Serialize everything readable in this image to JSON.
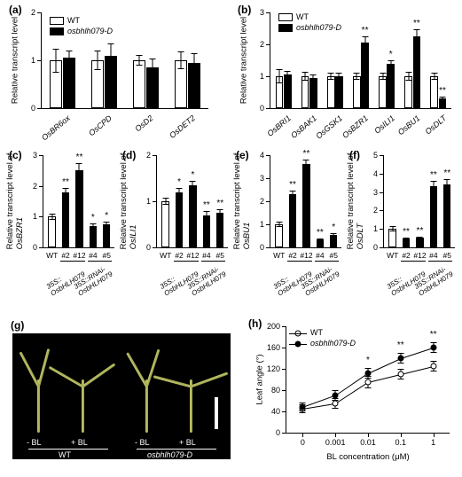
{
  "colors": {
    "wt": "#ffffff",
    "mut": "#000000",
    "axis": "#000000",
    "photo_bg": "#000000",
    "leaf": "#b9bb63"
  },
  "font": {
    "family": "Arial",
    "label_size": 9.5,
    "tick_size": 9,
    "panel_letter_size": 12
  },
  "legend_a": {
    "items": [
      {
        "label": "WT",
        "fill": "#ffffff"
      },
      {
        "label": "osbhlh079-D",
        "fill": "#000000",
        "italic": true
      }
    ]
  },
  "legend_h": {
    "items": [
      {
        "label": "WT",
        "marker": "open"
      },
      {
        "label": "osbhlh079-D",
        "marker": "filled",
        "italic": true
      }
    ]
  },
  "panel_a": {
    "letter": "(a)",
    "ylabel": "Relative transcript level",
    "ylim": [
      0,
      2
    ],
    "yticks": [
      0,
      1,
      2
    ],
    "categories": [
      "OsBR6ox",
      "OsCPD",
      "OsD2",
      "OsDET2"
    ],
    "series": [
      {
        "name": "WT",
        "fill": "#ffffff",
        "values": [
          1.0,
          1.0,
          1.0,
          1.0
        ],
        "err": [
          0.25,
          0.2,
          0.12,
          0.18
        ]
      },
      {
        "name": "osbhlh079-D",
        "fill": "#000000",
        "values": [
          1.05,
          1.1,
          0.85,
          0.95
        ],
        "err": [
          0.15,
          0.25,
          0.18,
          0.2
        ]
      }
    ],
    "bar_width": 0.3,
    "group_gap": 0.15
  },
  "panel_b": {
    "letter": "(b)",
    "ylabel": "Relative transcript level",
    "ylim": [
      0,
      3
    ],
    "yticks": [
      0,
      1,
      2,
      3
    ],
    "categories": [
      "OsBRI1",
      "OsBAK1",
      "OsGSK1",
      "OsBZR1",
      "OsILI1",
      "OsBU1",
      "OsDLT"
    ],
    "series": [
      {
        "name": "WT",
        "fill": "#ffffff",
        "values": [
          1.0,
          1.0,
          1.0,
          1.0,
          1.0,
          1.0,
          1.0
        ],
        "err": [
          0.22,
          0.15,
          0.12,
          0.1,
          0.12,
          0.15,
          0.1
        ]
      },
      {
        "name": "osbhlh079-D",
        "fill": "#000000",
        "values": [
          1.05,
          0.95,
          1.0,
          2.05,
          1.4,
          2.25,
          0.3
        ],
        "err": [
          0.12,
          0.12,
          0.1,
          0.2,
          0.1,
          0.22,
          0.05
        ],
        "sig": [
          "",
          "",
          "",
          "**",
          "*",
          "**",
          "**"
        ]
      }
    ],
    "bar_width": 0.3
  },
  "panel_c": {
    "letter": "(c)",
    "ylabel": "Relative transcript level of\nOsBZR1",
    "gene": "OsBZR1",
    "ylim": [
      0,
      3
    ],
    "yticks": [
      0,
      1,
      2,
      3
    ],
    "categories": [
      "WT",
      "#2",
      "#12",
      "#4",
      "#5"
    ],
    "values": [
      1.0,
      1.8,
      2.5,
      0.7,
      0.75
    ],
    "err": [
      0.1,
      0.12,
      0.25,
      0.08,
      0.08
    ],
    "fills": [
      "#ffffff",
      "#000000",
      "#000000",
      "#000000",
      "#000000"
    ],
    "sig": [
      "",
      "**",
      "**",
      "*",
      "*"
    ],
    "group_labels": [
      {
        "text": "35S::\nOsbHLH079",
        "span": [
          1,
          2
        ]
      },
      {
        "text": "35S::RNAi-\nOsbHLH079",
        "span": [
          3,
          4
        ]
      }
    ]
  },
  "panel_d": {
    "letter": "(d)",
    "ylabel": "Relative transcript level of\nOsILI1",
    "gene": "OsILI1",
    "ylim": [
      0,
      2
    ],
    "yticks": [
      0,
      1,
      2
    ],
    "categories": [
      "WT",
      "#2",
      "#12",
      "#4",
      "#5"
    ],
    "values": [
      1.0,
      1.2,
      1.35,
      0.7,
      0.75
    ],
    "err": [
      0.08,
      0.08,
      0.1,
      0.08,
      0.08
    ],
    "fills": [
      "#ffffff",
      "#000000",
      "#000000",
      "#000000",
      "#000000"
    ],
    "sig": [
      "",
      "*",
      "*",
      "**",
      "**"
    ],
    "group_labels": [
      {
        "text": "35S::\nOsbHLH079",
        "span": [
          1,
          2
        ]
      },
      {
        "text": "35S::RNAi-\nOsbHLH079",
        "span": [
          3,
          4
        ]
      }
    ]
  },
  "panel_e": {
    "letter": "(e)",
    "ylabel": "Relative transcript level of\nOsBU1",
    "gene": "OsBU1",
    "ylim": [
      0,
      4
    ],
    "yticks": [
      0,
      1,
      2,
      3,
      4
    ],
    "categories": [
      "WT",
      "#2",
      "#12",
      "#4",
      "#5"
    ],
    "values": [
      1.0,
      2.3,
      3.6,
      0.35,
      0.55
    ],
    "err": [
      0.12,
      0.15,
      0.2,
      0.05,
      0.05
    ],
    "fills": [
      "#ffffff",
      "#000000",
      "#000000",
      "#000000",
      "#000000"
    ],
    "sig": [
      "",
      "**",
      "**",
      "**",
      "*"
    ],
    "group_labels": [
      {
        "text": "35S::\nOsbHLH079",
        "span": [
          1,
          2
        ]
      },
      {
        "text": "35S::RNAi-\nOsbHLH079",
        "span": [
          3,
          4
        ]
      }
    ]
  },
  "panel_f": {
    "letter": "(f)",
    "ylabel": "Relative transcript level of\nOsDLT",
    "gene": "OsDLT",
    "ylim": [
      0,
      5
    ],
    "yticks": [
      0,
      1,
      2,
      3,
      4,
      5
    ],
    "categories": [
      "WT",
      "#2",
      "#12",
      "#4",
      "#5"
    ],
    "values": [
      1.0,
      0.5,
      0.55,
      3.3,
      3.4
    ],
    "err": [
      0.15,
      0.05,
      0.05,
      0.3,
      0.3
    ],
    "fills": [
      "#ffffff",
      "#000000",
      "#000000",
      "#000000",
      "#000000"
    ],
    "sig": [
      "",
      "**",
      "**",
      "**",
      "**"
    ],
    "group_labels": [
      {
        "text": "35S::\nOsbHLH079",
        "span": [
          1,
          2
        ]
      },
      {
        "text": "35S::RNAi-\nOsbHLH079",
        "span": [
          3,
          4
        ]
      }
    ]
  },
  "panel_g": {
    "letter": "(g)",
    "conditions": [
      "- BL",
      "+ BL",
      "- BL",
      "+ BL"
    ],
    "genotypes": [
      "WT",
      "osbhlh079-D"
    ],
    "scalebar_color": "#ffffff"
  },
  "panel_h": {
    "letter": "(h)",
    "ylabel": "Leaf angle (°)",
    "xlabel": "BL concentration (μM)",
    "ylim": [
      0,
      200
    ],
    "yticks": [
      0,
      40,
      80,
      120,
      160,
      200
    ],
    "x_categories": [
      "0",
      "0.001",
      "0.01",
      "0.1",
      "1"
    ],
    "series": [
      {
        "name": "WT",
        "marker": "open",
        "values": [
          45,
          55,
          95,
          110,
          125
        ],
        "err": [
          8,
          10,
          12,
          10,
          10
        ]
      },
      {
        "name": "osbhlh079-D",
        "marker": "filled",
        "values": [
          48,
          70,
          112,
          140,
          160
        ],
        "err": [
          8,
          10,
          10,
          10,
          10
        ],
        "sig": [
          "",
          "",
          "*",
          "**",
          "**"
        ]
      }
    ]
  }
}
